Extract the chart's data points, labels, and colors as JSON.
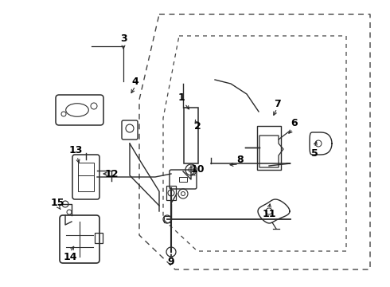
{
  "bg_color": "#ffffff",
  "line_color": "#2a2a2a",
  "dashed_color": "#444444",
  "text_color": "#000000",
  "figsize": [
    4.9,
    3.6
  ],
  "dpi": 100,
  "xlim": [
    0,
    490
  ],
  "ylim": [
    0,
    360
  ]
}
